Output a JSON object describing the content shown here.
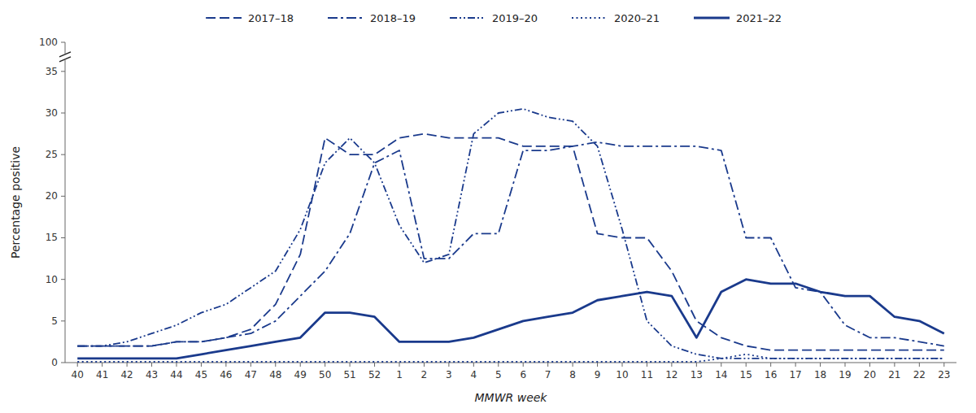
{
  "chart_data": {
    "type": "line",
    "x_label": "MMWR week",
    "y_label": "Percentage positive",
    "categories": [
      "40",
      "41",
      "42",
      "43",
      "44",
      "45",
      "46",
      "47",
      "48",
      "49",
      "50",
      "51",
      "52",
      "1",
      "2",
      "3",
      "4",
      "5",
      "6",
      "7",
      "8",
      "9",
      "10",
      "11",
      "12",
      "13",
      "14",
      "15",
      "16",
      "17",
      "18",
      "19",
      "20",
      "21",
      "22",
      "23"
    ],
    "series": [
      {
        "name": "2017–18",
        "color": "#1a3a8c",
        "line_style": "dashed",
        "values": [
          2.0,
          2.0,
          2.0,
          2.0,
          2.5,
          2.5,
          3.0,
          4.0,
          7.0,
          13.0,
          27.0,
          25.0,
          25.0,
          27.0,
          27.5,
          27.0,
          27.0,
          27.0,
          26.0,
          26.0,
          26.0,
          15.5,
          15.0,
          15.0,
          11.0,
          5.0,
          3.0,
          2.0,
          1.5,
          1.5,
          1.5,
          1.5,
          1.5,
          1.5,
          1.5,
          1.5
        ]
      },
      {
        "name": "2018–19",
        "color": "#1a3a8c",
        "line_style": "dash-dot",
        "values": [
          2.0,
          2.0,
          2.0,
          2.0,
          2.5,
          2.5,
          3.0,
          3.5,
          5.0,
          8.0,
          11.0,
          15.5,
          24.0,
          25.5,
          12.5,
          12.5,
          15.5,
          15.5,
          25.5,
          25.5,
          26.0,
          26.5,
          26.0,
          26.0,
          26.0,
          26.0,
          25.5,
          15.0,
          15.0,
          9.0,
          8.5,
          4.5,
          3.0,
          3.0,
          2.5,
          2.0
        ]
      },
      {
        "name": "2019–20",
        "color": "#1a3a8c",
        "line_style": "dash-dot-dot",
        "values": [
          2.0,
          2.0,
          2.5,
          3.5,
          4.5,
          6.0,
          7.0,
          9.0,
          11.0,
          16.0,
          24.0,
          27.0,
          24.0,
          16.5,
          12.0,
          13.0,
          27.5,
          30.0,
          30.5,
          29.5,
          29.0,
          26.0,
          16.0,
          5.0,
          2.0,
          1.0,
          0.5,
          0.5,
          0.5,
          0.5,
          0.5,
          0.5,
          0.5,
          0.5,
          0.5,
          0.5
        ]
      },
      {
        "name": "2020–21",
        "color": "#1a3a8c",
        "line_style": "dotted",
        "values": [
          0.1,
          0.1,
          0.1,
          0.1,
          0.1,
          0.1,
          0.1,
          0.1,
          0.1,
          0.1,
          0.1,
          0.1,
          0.1,
          0.1,
          0.1,
          0.1,
          0.1,
          0.1,
          0.1,
          0.1,
          0.1,
          0.1,
          0.1,
          0.1,
          0.1,
          0.1,
          0.5,
          1.0,
          0.5,
          0.5,
          0.5,
          0.5,
          0.5,
          0.5,
          0.5,
          0.5
        ]
      },
      {
        "name": "2021–22",
        "color": "#1a3a8c",
        "line_style": "solid",
        "values": [
          0.5,
          0.5,
          0.5,
          0.5,
          0.5,
          1.0,
          1.5,
          2.0,
          2.5,
          3.0,
          6.0,
          6.0,
          5.5,
          2.5,
          2.5,
          2.5,
          3.0,
          4.0,
          5.0,
          5.5,
          6.0,
          7.5,
          8.0,
          8.5,
          8.0,
          3.0,
          8.5,
          10.0,
          9.5,
          9.5,
          8.5,
          8.0,
          8.0,
          5.5,
          5.0,
          3.5
        ]
      }
    ],
    "ylim": [
      0,
      100
    ],
    "yticks": [
      0,
      5,
      10,
      15,
      20,
      25,
      30,
      35,
      100
    ],
    "grid": false,
    "legend": "top"
  }
}
